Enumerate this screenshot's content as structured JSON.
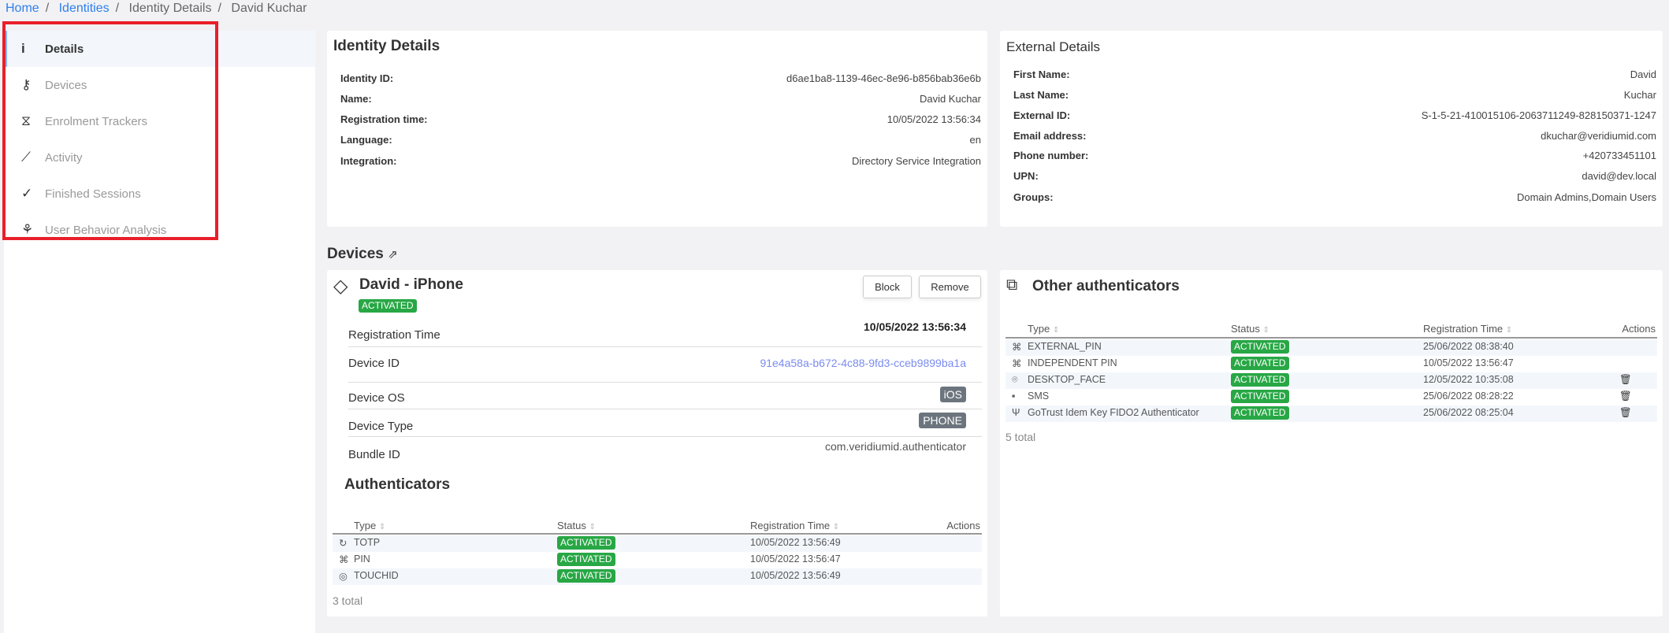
{
  "breadcrumb": [
    "Home",
    "Identities",
    "Identity Details",
    "David Kuchar"
  ],
  "sidebar": {
    "items": [
      {
        "label": "Details",
        "icon": "info-icon"
      },
      {
        "label": "Devices",
        "icon": "key-icon"
      },
      {
        "label": "Enrolment Trackers",
        "icon": "hourglass-icon"
      },
      {
        "label": "Activity",
        "icon": "chart-line-icon"
      },
      {
        "label": "Finished Sessions",
        "icon": "check-icon"
      },
      {
        "label": "User Behavior Analysis",
        "icon": "behavior-icon"
      }
    ]
  },
  "identity": {
    "title": "Identity Details",
    "rows": [
      {
        "k": "Identity ID:",
        "v": "d6ae1ba8-1139-46ec-8e96-b856bab36e6b"
      },
      {
        "k": "Name:",
        "v": "David Kuchar"
      },
      {
        "k": "Registration time:",
        "v": "10/05/2022 13:56:34"
      },
      {
        "k": "Language:",
        "v": "en"
      },
      {
        "k": "Integration:",
        "v": "Directory Service Integration"
      }
    ]
  },
  "external": {
    "title": "External Details",
    "rows": [
      {
        "k": "First Name:",
        "v": "David"
      },
      {
        "k": "Last Name:",
        "v": "Kuchar"
      },
      {
        "k": "External ID:",
        "v": "S-1-5-21-410015106-2063711249-828150371-1247"
      },
      {
        "k": "Email address:",
        "v": "dkuchar@veridiumid.com"
      },
      {
        "k": "Phone number:",
        "v": "+420733451101"
      },
      {
        "k": "UPN:",
        "v": "david@dev.local"
      },
      {
        "k": "Groups:",
        "v": "Domain Admins,Domain Users"
      }
    ]
  },
  "devices_heading": "Devices",
  "device": {
    "name": "David - iPhone",
    "status": "ACTIVATED",
    "block": "Block",
    "remove": "Remove",
    "rows": [
      {
        "k": "Registration Time",
        "v": "10/05/2022 13:56:34"
      },
      {
        "k": "Device ID",
        "v": "91e4a58a-b672-4c88-9fd3-cceb9899ba1a"
      },
      {
        "k": "Device OS",
        "v": "iOS"
      },
      {
        "k": "Device Type",
        "v": "PHONE"
      },
      {
        "k": "Bundle ID",
        "v": "com.veridiumid.authenticator"
      }
    ],
    "auth_title": "Authenticators",
    "columns": [
      "Type",
      "Status",
      "Registration Time",
      "Actions"
    ],
    "auths": [
      {
        "type": "TOTP",
        "status": "ACTIVATED",
        "time": "10/05/2022 13:56:49",
        "icon": "clock-refresh-icon"
      },
      {
        "type": "PIN",
        "status": "ACTIVATED",
        "time": "10/05/2022 13:56:47",
        "icon": "pin-icon"
      },
      {
        "type": "TOUCHID",
        "status": "ACTIVATED",
        "time": "10/05/2022 13:56:49",
        "icon": "fingerprint-icon"
      }
    ],
    "total": "3 total"
  },
  "other": {
    "title": "Other authenticators",
    "columns": [
      "Type",
      "Status",
      "Registration Time",
      "Actions"
    ],
    "rows": [
      {
        "type": "EXTERNAL_PIN",
        "status": "ACTIVATED",
        "time": "25/06/2022 08:38:40",
        "icon": "pin-icon",
        "delete": false
      },
      {
        "type": "INDEPENDENT PIN",
        "status": "ACTIVATED",
        "time": "10/05/2022 13:56:47",
        "icon": "pin-icon",
        "delete": false
      },
      {
        "type": "DESKTOP_FACE",
        "status": "ACTIVATED",
        "time": "12/05/2022 10:35:08",
        "icon": "face-scan-icon",
        "delete": true
      },
      {
        "type": "SMS",
        "status": "ACTIVATED",
        "time": "25/06/2022 08:28:22",
        "icon": "message-icon",
        "delete": true
      },
      {
        "type": "GoTrust Idem Key FIDO2 Authenticator",
        "status": "ACTIVATED",
        "time": "25/06/2022 08:25:04",
        "icon": "usb-icon",
        "delete": true
      }
    ],
    "total": "5 total"
  },
  "colors": {
    "accent": "#2f80ed",
    "activated": "#28a745",
    "highlight": "#e8202a"
  }
}
